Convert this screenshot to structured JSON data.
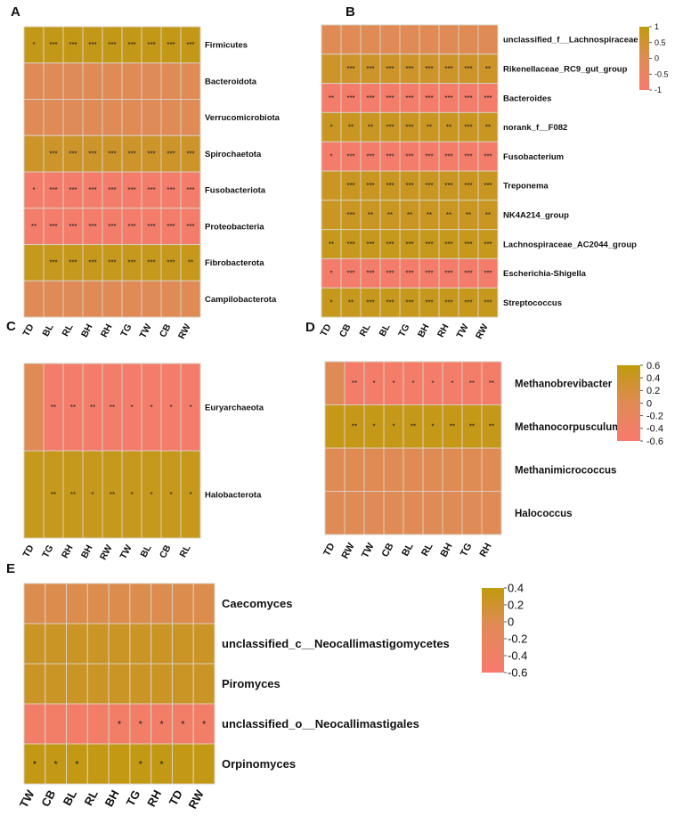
{
  "figure": {
    "palette": {
      "high": "#BF9B0C",
      "mid": "#E08A55",
      "low": "#F87A6E",
      "grid": "#D9D0C0"
    }
  },
  "chart_data": [
    {
      "panel": "A",
      "type": "heatmap",
      "title": "",
      "vrange": [
        -1,
        1
      ],
      "colorbar": null,
      "columns": [
        "TD",
        "BL",
        "RL",
        "BH",
        "RH",
        "TG",
        "TW",
        "CB",
        "RW"
      ],
      "rows": [
        "Firmicutes",
        "Bacteroidota",
        "Verrucomicrobiota",
        "Spirochaetota",
        "Fusobacteriota",
        "Proteobacteria",
        "Fibrobacterota",
        "Campilobacterota"
      ],
      "values": [
        [
          0.85,
          0.85,
          0.85,
          0.85,
          0.85,
          0.85,
          0.85,
          0.85,
          0.85
        ],
        [
          0,
          0,
          0,
          0,
          0,
          0,
          0,
          0,
          0
        ],
        [
          0,
          0,
          0,
          0,
          0,
          0,
          0,
          0,
          0
        ],
        [
          0.6,
          0.6,
          0.6,
          0.6,
          0.6,
          0.6,
          0.6,
          0.6,
          0.6
        ],
        [
          -0.85,
          -0.85,
          -0.85,
          -0.85,
          -0.85,
          -0.85,
          -0.85,
          -0.85,
          -0.85
        ],
        [
          -0.85,
          -0.85,
          -0.85,
          -0.85,
          -0.85,
          -0.85,
          -0.85,
          -0.85,
          -0.85
        ],
        [
          0.8,
          0.8,
          0.8,
          0.8,
          0.8,
          0.8,
          0.8,
          0.8,
          0.8
        ],
        [
          0,
          0,
          0,
          0,
          0,
          0,
          0,
          0,
          0
        ]
      ],
      "stars": [
        [
          "*",
          "***",
          "***",
          "***",
          "***",
          "***",
          "***",
          "***",
          "***"
        ],
        [
          "",
          "",
          "",
          "",
          "",
          "",
          "",
          "",
          ""
        ],
        [
          "",
          "",
          "",
          "",
          "",
          "",
          "",
          "",
          ""
        ],
        [
          "",
          "***",
          "***",
          "***",
          "***",
          "***",
          "***",
          "***",
          "***"
        ],
        [
          "*",
          "***",
          "***",
          "***",
          "***",
          "***",
          "***",
          "***",
          "***"
        ],
        [
          "**",
          "***",
          "***",
          "***",
          "***",
          "***",
          "***",
          "***",
          "***"
        ],
        [
          "",
          "***",
          "***",
          "***",
          "***",
          "***",
          "***",
          "***",
          "**"
        ],
        [
          "",
          "",
          "",
          "",
          "",
          "",
          "",
          "",
          ""
        ]
      ]
    },
    {
      "panel": "B",
      "type": "heatmap",
      "title": "",
      "vrange": [
        -1,
        1
      ],
      "colorbar": {
        "ticks": [
          1,
          0.5,
          0,
          -0.5,
          -1
        ],
        "tick_labels": [
          "1",
          "0.5",
          "0",
          "-0.5",
          "-1"
        ]
      },
      "columns": [
        "TD",
        "CB",
        "RL",
        "BL",
        "TG",
        "BH",
        "RH",
        "TW",
        "RW"
      ],
      "rows": [
        "unclassified_f__Lachnospiraceae",
        "Rikenellaceae_RC9_gut_group",
        "Bacteroides",
        "norank_f__F082",
        "Fusobacterium",
        "Treponema",
        "NK4A214_group",
        "Lachnospiraceae_AC2044_group",
        "Escherichia-Shigella",
        "Streptococcus"
      ],
      "values": [
        [
          0,
          0,
          0,
          0,
          0,
          0,
          0,
          0,
          0
        ],
        [
          0.6,
          0.6,
          0.6,
          0.6,
          0.6,
          0.6,
          0.6,
          0.6,
          0.6
        ],
        [
          -0.85,
          -0.85,
          -0.85,
          -0.85,
          -0.85,
          -0.85,
          -0.85,
          -0.85,
          -0.85
        ],
        [
          0.7,
          0.7,
          0.7,
          0.7,
          0.7,
          0.7,
          0.7,
          0.7,
          0.7
        ],
        [
          -0.85,
          -0.85,
          -0.85,
          -0.85,
          -0.85,
          -0.85,
          -0.85,
          -0.85,
          -0.85
        ],
        [
          0.7,
          0.7,
          0.7,
          0.7,
          0.7,
          0.7,
          0.7,
          0.7,
          0.7
        ],
        [
          0.7,
          0.7,
          0.7,
          0.7,
          0.7,
          0.7,
          0.7,
          0.7,
          0.7
        ],
        [
          0.8,
          0.8,
          0.8,
          0.8,
          0.8,
          0.8,
          0.8,
          0.8,
          0.8
        ],
        [
          -0.85,
          -0.85,
          -0.85,
          -0.85,
          -0.85,
          -0.85,
          -0.85,
          -0.85,
          -0.85
        ],
        [
          0.8,
          0.8,
          0.8,
          0.8,
          0.8,
          0.8,
          0.8,
          0.8,
          0.8
        ]
      ],
      "stars": [
        [
          "",
          "",
          "",
          "",
          "",
          "",
          "",
          "",
          ""
        ],
        [
          "",
          "***",
          "***",
          "***",
          "***",
          "***",
          "***",
          "***",
          "**"
        ],
        [
          "**",
          "***",
          "***",
          "***",
          "***",
          "***",
          "***",
          "***",
          "***"
        ],
        [
          "*",
          "**",
          "**",
          "***",
          "***",
          "**",
          "**",
          "***",
          "**"
        ],
        [
          "*",
          "***",
          "***",
          "***",
          "***",
          "***",
          "***",
          "***",
          "***"
        ],
        [
          "",
          "***",
          "***",
          "***",
          "***",
          "***",
          "***",
          "***",
          "***"
        ],
        [
          "",
          "***",
          "**",
          "**",
          "**",
          "**",
          "**",
          "**",
          "**"
        ],
        [
          "**",
          "***",
          "***",
          "***",
          "***",
          "***",
          "***",
          "***",
          "***"
        ],
        [
          "*",
          "***",
          "***",
          "***",
          "***",
          "***",
          "***",
          "***",
          "***"
        ],
        [
          "*",
          "**",
          "***",
          "***",
          "***",
          "***",
          "***",
          "***",
          "***"
        ]
      ]
    },
    {
      "panel": "C",
      "type": "heatmap",
      "title": "",
      "vrange": [
        -1,
        1
      ],
      "colorbar": null,
      "columns": [
        "TD",
        "TG",
        "RH",
        "BH",
        "RW",
        "TW",
        "BL",
        "CB",
        "RL"
      ],
      "rows": [
        "Euryarchaeota",
        "Halobacterota"
      ],
      "values": [
        [
          0,
          -0.85,
          -0.85,
          -0.85,
          -0.85,
          -0.85,
          -0.85,
          -0.85,
          -0.85
        ],
        [
          0.8,
          0.8,
          0.8,
          0.8,
          0.8,
          0.8,
          0.8,
          0.8,
          0.8
        ]
      ],
      "stars": [
        [
          "",
          "**",
          "**",
          "**",
          "**",
          "*",
          "*",
          "*",
          "*"
        ],
        [
          "",
          "**",
          "**",
          "*",
          "**",
          "*",
          "*",
          "*",
          "*"
        ]
      ]
    },
    {
      "panel": "D",
      "type": "heatmap",
      "title": "",
      "vrange": [
        -0.6,
        0.6
      ],
      "colorbar": {
        "ticks": [
          0.6,
          0.4,
          0.2,
          0,
          -0.2,
          -0.4,
          -0.6
        ],
        "tick_labels": [
          "0.6",
          "0.4",
          "0.2",
          "0",
          "-0.2",
          "-0.4",
          "-0.6"
        ]
      },
      "columns": [
        "TD",
        "RW",
        "TW",
        "CB",
        "BL",
        "RL",
        "BH",
        "TG",
        "RH"
      ],
      "rows": [
        "Methanobrevibacter",
        "Methanocorpusculum",
        "Methanimicrococcus",
        "Halococcus"
      ],
      "values": [
        [
          0,
          -0.5,
          -0.5,
          -0.5,
          -0.5,
          -0.5,
          -0.5,
          -0.5,
          -0.5
        ],
        [
          0.5,
          0.5,
          0.5,
          0.5,
          0.5,
          0.5,
          0.5,
          0.5,
          0.5
        ],
        [
          0.02,
          0.02,
          0.02,
          0.02,
          0.02,
          0.02,
          0.02,
          0.02,
          0.02
        ],
        [
          0,
          0,
          0,
          0,
          0,
          0,
          0,
          0,
          0
        ]
      ],
      "stars": [
        [
          "",
          "**",
          "*",
          "*",
          "*",
          "*",
          "*",
          "**",
          "**"
        ],
        [
          "",
          "**",
          "*",
          "*",
          "**",
          "*",
          "**",
          "**",
          "**"
        ],
        [
          "",
          "",
          "",
          "",
          "",
          "",
          "",
          "",
          ""
        ],
        [
          "",
          "",
          "",
          "",
          "",
          "",
          "",
          "",
          ""
        ]
      ]
    },
    {
      "panel": "E",
      "type": "heatmap",
      "title": "",
      "vrange": [
        -0.6,
        0.45
      ],
      "colorbar": {
        "ticks": [
          0.4,
          0.2,
          0,
          -0.2,
          -0.4,
          -0.6
        ],
        "tick_labels": [
          "0.4",
          "0.2",
          "0",
          "-0.2",
          "-0.4",
          "-0.6"
        ]
      },
      "columns": [
        "TW",
        "CB",
        "BL",
        "RL",
        "BH",
        "TG",
        "RH",
        "TD",
        "RW"
      ],
      "rows": [
        "Caecomyces",
        "unclassified_c__Neocallimastigomycetes",
        "Piromyces",
        "unclassified_o__Neocallimastigales",
        "Orpinomyces"
      ],
      "values": [
        [
          0.05,
          0.05,
          0.05,
          0.05,
          0.05,
          0.05,
          0.05,
          0.05,
          0.05
        ],
        [
          0.3,
          0.3,
          0.3,
          0.3,
          0.3,
          0.3,
          0.3,
          0.3,
          0.3
        ],
        [
          0.3,
          0.3,
          0.3,
          0.3,
          0.3,
          0.3,
          0.3,
          0.3,
          0.3
        ],
        [
          -0.45,
          -0.45,
          -0.45,
          -0.45,
          -0.45,
          -0.45,
          -0.45,
          -0.45,
          -0.45
        ],
        [
          0.4,
          0.4,
          0.4,
          0.4,
          0.4,
          0.4,
          0.4,
          0.4,
          0.4
        ]
      ],
      "stars": [
        [
          "",
          "",
          "",
          "",
          "",
          "",
          "",
          "",
          ""
        ],
        [
          "",
          "",
          "",
          "",
          "",
          "",
          "",
          "",
          ""
        ],
        [
          "",
          "",
          "",
          "",
          "",
          "",
          "",
          "",
          ""
        ],
        [
          "",
          "",
          "",
          "",
          "*",
          "*",
          "*",
          "*",
          "*"
        ],
        [
          "*",
          "*",
          "*",
          "",
          "",
          "*",
          "*",
          "",
          ""
        ]
      ]
    }
  ]
}
